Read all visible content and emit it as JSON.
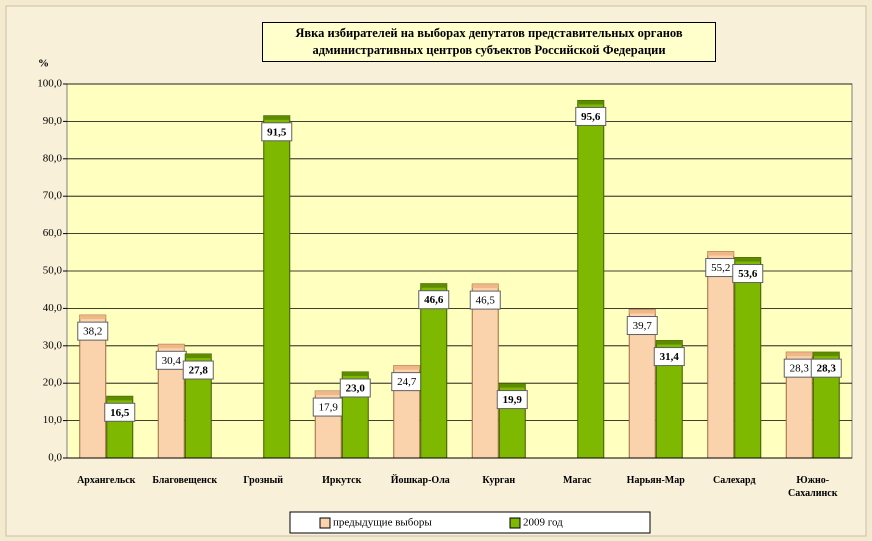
{
  "chart_data": {
    "type": "bar",
    "title": "Явка избирателей на выборах депутатов представительных органов административных центров субъектов Российской Федерации",
    "y_label": "%",
    "categories": [
      "Архангельск",
      "Благовещенск",
      "Грозный",
      "Иркутск",
      "Йошкар-Ола",
      "Курган",
      "Магас",
      "Нарьян-Мар",
      "Салехард",
      "Южно-Сахалинск"
    ],
    "series": [
      {
        "name": "предыдущие выборы",
        "color": "#fad3ac",
        "values": [
          38.2,
          30.4,
          null,
          17.9,
          24.7,
          46.5,
          null,
          39.7,
          55.2,
          28.3
        ],
        "value_labels": [
          "38,2",
          "30,4",
          null,
          "17,9",
          "24,7",
          "46,5",
          null,
          "39,7",
          "55,2",
          "28,3"
        ]
      },
      {
        "name": "2009 год",
        "color": "#7fb800",
        "values": [
          16.5,
          27.8,
          91.5,
          23.0,
          46.6,
          19.9,
          95.6,
          31.4,
          53.6,
          28.3
        ],
        "value_labels": [
          "16,5",
          "27,8",
          "91,5",
          "23,0",
          "46,6",
          "19,9",
          "95,6",
          "31,4",
          "53,6",
          "28,3"
        ]
      }
    ],
    "ylim": [
      0,
      100
    ],
    "yticks": [
      {
        "value": 0,
        "label": "0,0"
      },
      {
        "value": 10,
        "label": "10,0"
      },
      {
        "value": 20,
        "label": "20,0"
      },
      {
        "value": 30,
        "label": "30,0"
      },
      {
        "value": 40,
        "label": "40,0"
      },
      {
        "value": 50,
        "label": "50,0"
      },
      {
        "value": 60,
        "label": "60,0"
      },
      {
        "value": 70,
        "label": "70,0"
      },
      {
        "value": 80,
        "label": "80,0"
      },
      {
        "value": 90,
        "label": "90,0"
      },
      {
        "value": 100,
        "label": "100,0"
      }
    ],
    "grid": true,
    "legend": "bottom"
  }
}
